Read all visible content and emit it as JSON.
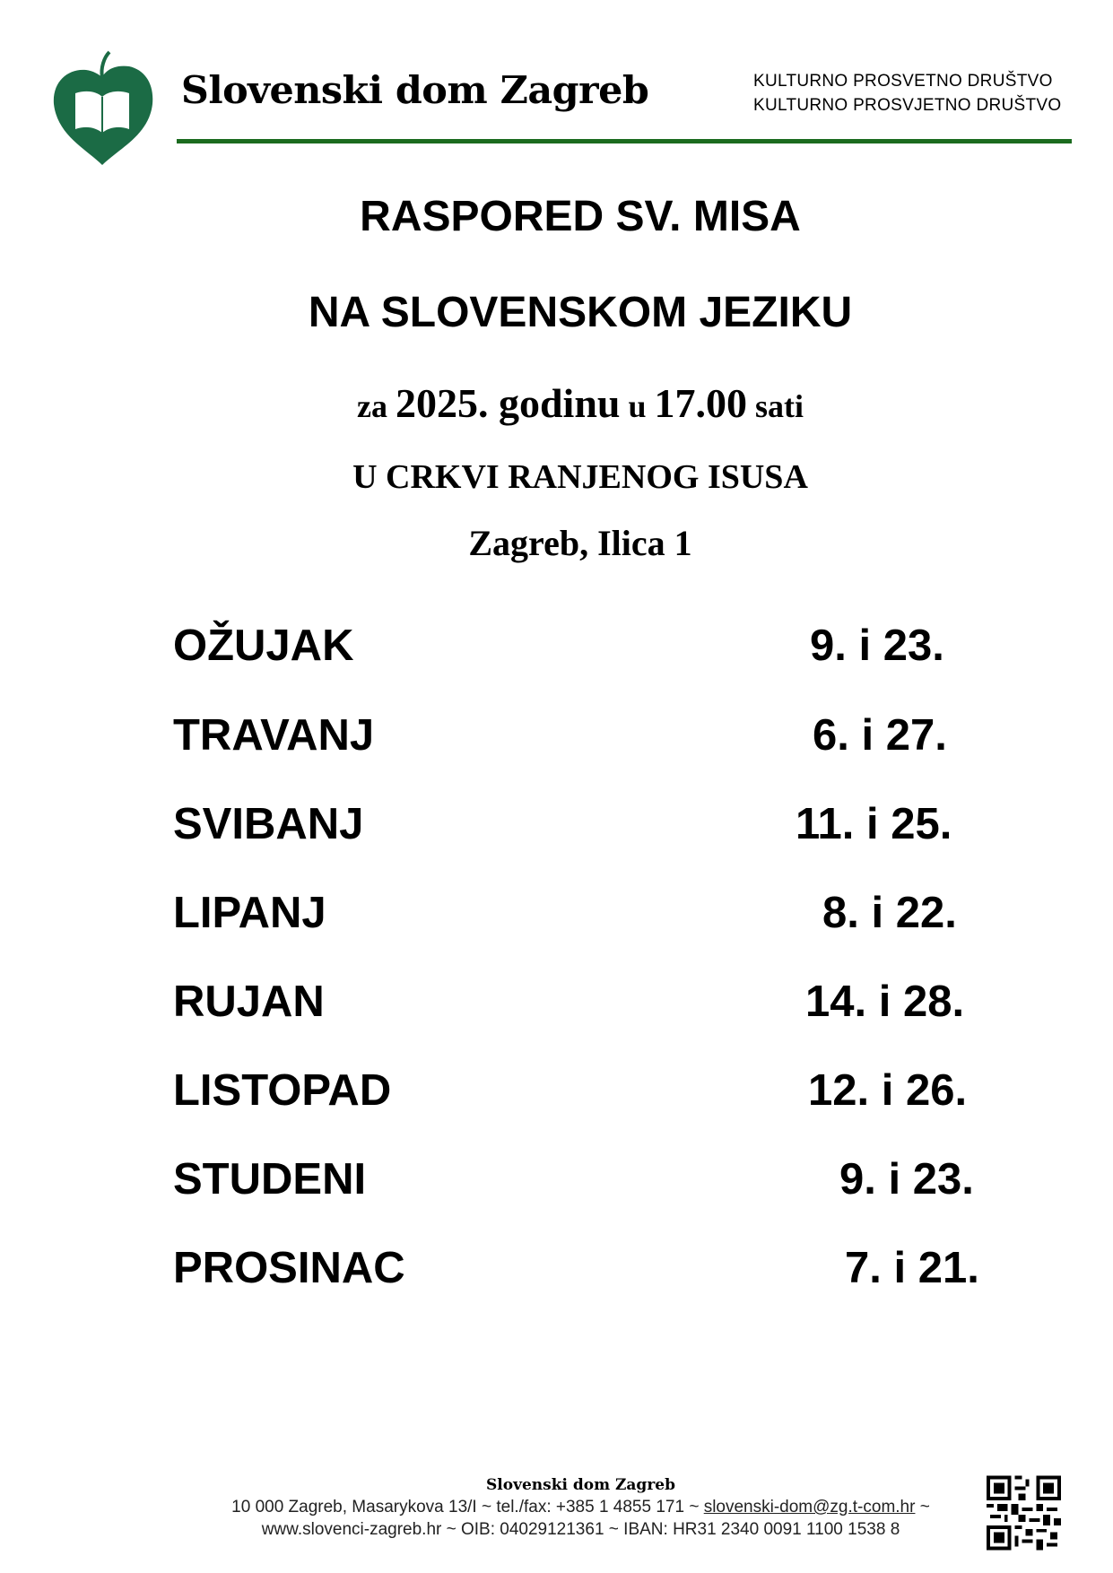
{
  "header": {
    "brand": "Slovenski dom Zagreb",
    "subtitle_1": "KULTURNO  PROSVETNO  DRUŠTVO",
    "subtitle_2": "KULTURNO PROSVJETNO DRUŠTVO",
    "accent_color": "#1b6b1f",
    "logo_icon": "leaf-book-logo"
  },
  "title": {
    "line1": "RASPORED SV. MISA",
    "line2": "NA SLOVENSKOM JEZIKU",
    "line3_a": "za ",
    "line3_b": "2025. godinu",
    "line3_c": " u ",
    "line3_d": "17.00",
    "line3_e": " sati",
    "line4": "U CRKVI RANJENOG ISUSA",
    "line5": "Zagreb, Ilica 1"
  },
  "schedule": [
    {
      "month": "OŽUJAK",
      "dates": "9. i 23."
    },
    {
      "month": "TRAVANJ",
      "dates": "6. i 27."
    },
    {
      "month": "SVIBANJ",
      "dates": "11. i 25."
    },
    {
      "month": "LIPANJ",
      "dates": "8. i 22."
    },
    {
      "month": "RUJAN",
      "dates": "14. i 28."
    },
    {
      "month": "LISTOPAD",
      "dates": "12. i 26."
    },
    {
      "month": "STUDENI",
      "dates": "9. i 23."
    },
    {
      "month": "PROSINAC",
      "dates": "7. i 21."
    }
  ],
  "footer": {
    "title": "Slovenski dom Zagreb",
    "line1_a": "10 000 Zagreb, Masarykova 13/I ~ tel./fax: +385 1 4855 171 ~ ",
    "email": "slovenski-dom@zg.t-com.hr",
    "line1_b": " ~",
    "line2": "www.slovenci-zagreb.hr ~ OIB: 04029121361 ~ IBAN: HR31 2340 0091 1100 1538 8",
    "qr_icon": "qr-code"
  }
}
